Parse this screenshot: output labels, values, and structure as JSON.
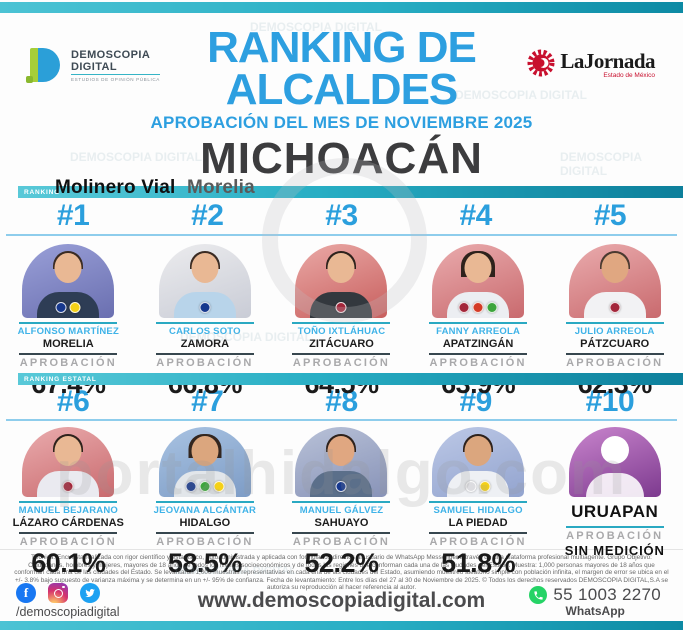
{
  "header": {
    "brand": {
      "line1": "DEMOSCOPIA",
      "line2": "DIGITAL",
      "tagline": "ESTUDIOS DE OPINIÓN PÚBLICA"
    },
    "title_line1": "RANKING DE",
    "title_line2": "ALCALDES",
    "subtitle": "APROBACIÓN DEL MES DE NOVIEMBRE 2025",
    "state": "MICHOACÁN",
    "partner": {
      "name": "LaJornada",
      "subname": "Estado de México"
    }
  },
  "caption": {
    "text1": "Molinero Vial",
    "text2": "Morelia"
  },
  "watermarks": {
    "brand": "DEMOSCOPIA DIGITAL",
    "site": "portalhidalgo.com"
  },
  "labels": {
    "approval": "APROBACIÓN"
  },
  "sections": {
    "ranking": "RANKING",
    "estatal": "RANKING ESTATAL"
  },
  "cards": [
    {
      "rank": "#1",
      "name": "ALFONSO MARTÍNEZ",
      "city": "MORELIA",
      "approval": "67.4%",
      "photo": {
        "bg1": "#9aa0d8",
        "bg2": "#6a6fb0",
        "skin": "#e9b894",
        "hair": "#3a2b23",
        "shirt": "#2e3d55"
      },
      "badges": [
        {
          "label": "PAN",
          "color": "#16388e"
        },
        {
          "label": "PRD",
          "color": "#f5d117"
        }
      ]
    },
    {
      "rank": "#2",
      "name": "CARLOS SOTO",
      "city": "ZAMORA",
      "approval": "66.8%",
      "photo": {
        "bg1": "#ececee",
        "bg2": "#c9ccd6",
        "skin": "#e9b894",
        "hair": "#3a2b23",
        "shirt": "#b8d4ea"
      },
      "badges": [
        {
          "label": "PAN",
          "color": "#16388e"
        }
      ]
    },
    {
      "rank": "#3",
      "name": "TOÑO IXTLÁHUAC",
      "city": "ZITÁCUARO",
      "approval": "64.5%",
      "photo": {
        "bg1": "#eaa9a6",
        "bg2": "#c85f5e",
        "skin": "#e9b894",
        "hair": "#2e221c",
        "shirt": "#33383e"
      },
      "badges": [
        {
          "label": "MORENA",
          "color": "#a3263a"
        }
      ]
    },
    {
      "rank": "#4",
      "name": "FANNY ARREOLA",
      "city": "APATZINGÁN",
      "approval": "63.9%",
      "photo": {
        "bg1": "#eaacae",
        "bg2": "#c96a6e",
        "skin": "#e9b894",
        "hair": "#2e221c",
        "shirt": "#eceef2"
      },
      "badges": [
        {
          "label": "MORENA",
          "color": "#a3263a"
        },
        {
          "label": "PT",
          "color": "#d43b26"
        },
        {
          "label": "PVEM",
          "color": "#3da53c"
        }
      ]
    },
    {
      "rank": "#5",
      "name": "JULIO ARREOLA",
      "city": "PÁTZCUARO",
      "approval": "62.3%",
      "photo": {
        "bg1": "#eaacae",
        "bg2": "#c96a6e",
        "skin": "#e0a781",
        "hair": "#4a3a30",
        "shirt": "#f2f2f4"
      },
      "badges": [
        {
          "label": "MORENA",
          "color": "#a3263a"
        }
      ]
    },
    {
      "rank": "#6",
      "name": "MANUEL BEJARANO",
      "city": "LÁZARO CÁRDENAS",
      "approval": "60.1%",
      "photo": {
        "bg1": "#eaacae",
        "bg2": "#c96a6e",
        "skin": "#e9b894",
        "hair": "#2e221c",
        "shirt": "#eaeaf0"
      },
      "badges": [
        {
          "label": "MORENA",
          "color": "#a3263a"
        }
      ]
    },
    {
      "rank": "#7",
      "name": "JEOVANA ALCÁNTAR",
      "city": "HIDALGO",
      "approval": "58.5%",
      "photo": {
        "bg1": "#a9c3e2",
        "bg2": "#7d9cc6",
        "skin": "#dba67e",
        "hair": "#33261f",
        "shirt": "#e2e6ea"
      },
      "badges": [
        {
          "label": "PAN",
          "color": "#16388e"
        },
        {
          "label": "PVEM",
          "color": "#3da53c"
        },
        {
          "label": "PRD",
          "color": "#f5d117"
        }
      ]
    },
    {
      "rank": "#8",
      "name": "MANUEL GÁLVEZ",
      "city": "SAHUAYO",
      "approval": "52.2%",
      "photo": {
        "bg1": "#b9c2d8",
        "bg2": "#8893b8",
        "skin": "#e0a781",
        "hair": "#2e221c",
        "shirt": "#5b6f8a"
      },
      "badges": [
        {
          "label": "PAN",
          "color": "#16388e"
        }
      ]
    },
    {
      "rank": "#9",
      "name": "SAMUEL HIDALGO",
      "city": "LA PIEDAD",
      "approval": "51.8%",
      "photo": {
        "bg1": "#bcc8e6",
        "bg2": "#93a4cf",
        "skin": "#dba67e",
        "hair": "#2e221c",
        "shirt": "#eef0f4"
      },
      "badges": [
        {
          "label": "MC",
          "color": "#dcdce0"
        },
        {
          "label": "PRD",
          "color": "#f5d117"
        }
      ]
    },
    {
      "rank": "#10",
      "name": "",
      "city": "URUAPAN",
      "approval": "SIN MEDICIÓN",
      "photo": {
        "bg1": "#c985cd",
        "bg2": "#7d3a8f"
      },
      "badges": []
    }
  ],
  "fine_print": "Técnica: Encuesta realizada con rigor científico y estadístico, autoadministrada y aplicada con formularios directos al usuario de WhatsApp Messenger a través de una plataforma profesional multiagente. Grupo Objetivo: Ciudadanos, hombres y mujeres, mayores de 18 años de todos los niveles socioeconómicos y de todas las regiones que conforman cada una de las ciudades del Estado. Muestra: 1,000 personas mayores de 18 años que conforman cada una de las ciudades del Estado. Se levantaron 1,000 muestras representativas en cada una de las ciudades del Estado, asumiendo muestreo aleatorio simple con población infinita, el margen de error se ubica en el +/- 3.8% bajo supuesto de varianza máxima y se determina en un +/- 95% de confianza. Fecha de levantamiento: Entre los días del 27 al 30 de Noviembre de 2025. © Todos los derechos reservados DEMOSCOPIA DIGITAL,S.A se autoriza su reproducción al hacer referencia al autor.",
  "footer": {
    "social_handle": "/demoscopiadigital",
    "website": "www.demoscopiadigital.com",
    "whatsapp_number": "55 1003 2270",
    "whatsapp_label": "WhatsApp"
  }
}
